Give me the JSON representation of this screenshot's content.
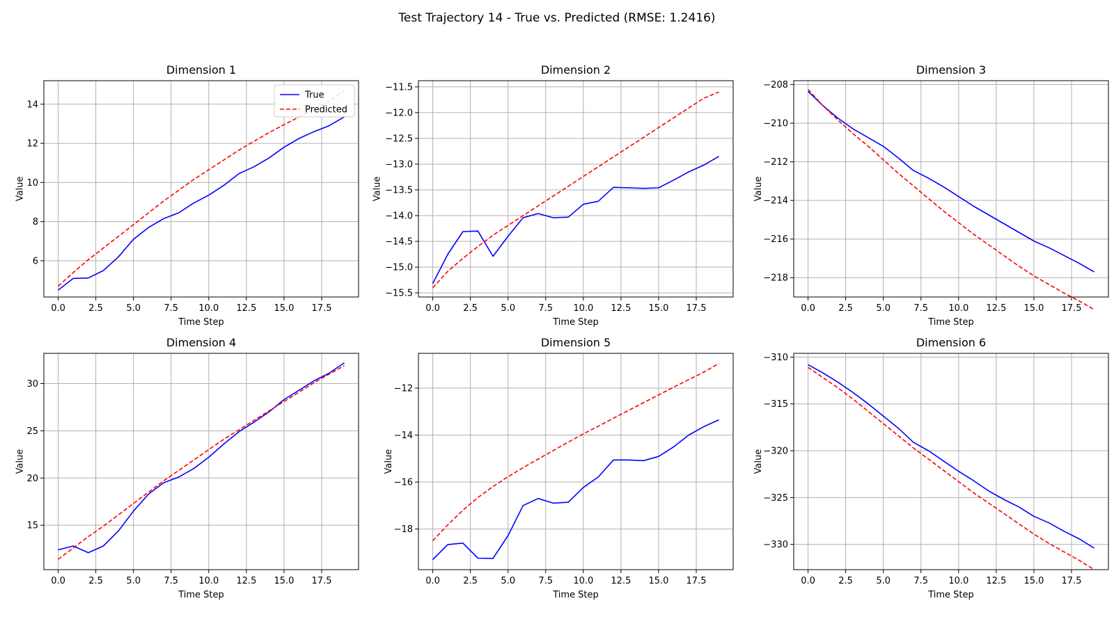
{
  "figure": {
    "title": "Test Trajectory 14 - True vs. Predicted (RMSE: 1.2416)"
  },
  "legend": {
    "true_label": "True",
    "predicted_label": "Predicted",
    "placement": "top-right (Dimension 1 only)"
  },
  "colors": {
    "true": "#0000ff",
    "predicted": "#ff0000",
    "grid": "#b0b0b0"
  },
  "chart_data": [
    {
      "type": "line",
      "title": "Dimension 1",
      "xlabel": "Time Step",
      "ylabel": "Value",
      "grid": true,
      "x": [
        0,
        1,
        2,
        3,
        4,
        5,
        6,
        7,
        8,
        9,
        10,
        11,
        12,
        13,
        14,
        15,
        16,
        17,
        18,
        19
      ],
      "xlim": [
        -0.95,
        19.95
      ],
      "ylim": [
        4.15,
        15.2
      ],
      "xticks": [
        0.0,
        2.5,
        5.0,
        7.5,
        10.0,
        12.5,
        15.0,
        17.5
      ],
      "xtick_labels": [
        "0.0",
        "2.5",
        "5.0",
        "7.5",
        "10.0",
        "12.5",
        "15.0",
        "17.5"
      ],
      "yticks": [
        6,
        8,
        10,
        12,
        14
      ],
      "ytick_labels": [
        "6",
        "8",
        "10",
        "12",
        "14"
      ],
      "series": [
        {
          "name": "True",
          "style": "solid",
          "values": [
            4.5,
            5.1,
            5.12,
            5.5,
            6.2,
            7.1,
            7.7,
            8.15,
            8.45,
            8.95,
            9.35,
            9.85,
            10.45,
            10.8,
            11.25,
            11.8,
            12.25,
            12.6,
            12.9,
            13.35
          ]
        },
        {
          "name": "Predicted",
          "style": "dashed",
          "values": [
            4.7,
            5.4,
            6.05,
            6.65,
            7.25,
            7.85,
            8.45,
            9.05,
            9.6,
            10.15,
            10.65,
            11.15,
            11.65,
            12.1,
            12.55,
            12.95,
            13.35,
            13.75,
            14.15,
            14.7
          ]
        }
      ]
    },
    {
      "type": "line",
      "title": "Dimension 2",
      "xlabel": "Time Step",
      "ylabel": "Value",
      "grid": true,
      "x": [
        0,
        1,
        2,
        3,
        4,
        5,
        6,
        7,
        8,
        9,
        10,
        11,
        12,
        13,
        14,
        15,
        16,
        17,
        18,
        19
      ],
      "xlim": [
        -0.95,
        19.95
      ],
      "ylim": [
        -15.58,
        -11.38
      ],
      "xticks": [
        0.0,
        2.5,
        5.0,
        7.5,
        10.0,
        12.5,
        15.0,
        17.5
      ],
      "xtick_labels": [
        "0.0",
        "2.5",
        "5.0",
        "7.5",
        "10.0",
        "12.5",
        "15.0",
        "17.5"
      ],
      "yticks": [
        -15.5,
        -15.0,
        -14.5,
        -14.0,
        -13.5,
        -13.0,
        -12.5,
        -12.0,
        -11.5
      ],
      "ytick_labels": [
        "−15.5",
        "−15.0",
        "−14.5",
        "−14.0",
        "−13.5",
        "−13.0",
        "−12.5",
        "−12.0",
        "−11.5"
      ],
      "series": [
        {
          "name": "True",
          "style": "solid",
          "values": [
            -15.32,
            -14.75,
            -14.31,
            -14.3,
            -14.79,
            -14.4,
            -14.04,
            -13.96,
            -14.04,
            -14.03,
            -13.78,
            -13.72,
            -13.45,
            -13.46,
            -13.47,
            -13.46,
            -13.31,
            -13.15,
            -13.02,
            -12.85
          ]
        },
        {
          "name": "Predicted",
          "style": "dashed",
          "values": [
            -15.4,
            -15.08,
            -14.83,
            -14.6,
            -14.38,
            -14.19,
            -14.0,
            -13.81,
            -13.62,
            -13.43,
            -13.24,
            -13.05,
            -12.86,
            -12.67,
            -12.48,
            -12.29,
            -12.1,
            -11.91,
            -11.72,
            -11.6
          ]
        }
      ]
    },
    {
      "type": "line",
      "title": "Dimension 3",
      "xlabel": "Time Step",
      "ylabel": "Value",
      "grid": true,
      "x": [
        0,
        1,
        2,
        3,
        4,
        5,
        6,
        7,
        8,
        9,
        10,
        11,
        12,
        13,
        14,
        15,
        16,
        17,
        18,
        19
      ],
      "xlim": [
        -0.95,
        19.95
      ],
      "ylim": [
        -219.0,
        -207.8
      ],
      "xticks": [
        0.0,
        2.5,
        5.0,
        7.5,
        10.0,
        12.5,
        15.0,
        17.5
      ],
      "xtick_labels": [
        "0.0",
        "2.5",
        "5.0",
        "7.5",
        "10.0",
        "12.5",
        "15.0",
        "17.5"
      ],
      "yticks": [
        -218,
        -216,
        -214,
        -212,
        -210,
        -208
      ],
      "ytick_labels": [
        "−218",
        "−216",
        "−214",
        "−212",
        "−210",
        "−208"
      ],
      "series": [
        {
          "name": "True",
          "style": "solid",
          "values": [
            -208.35,
            -209.1,
            -209.75,
            -210.3,
            -210.75,
            -211.2,
            -211.8,
            -212.45,
            -212.85,
            -213.3,
            -213.8,
            -214.3,
            -214.75,
            -215.2,
            -215.65,
            -216.1,
            -216.45,
            -216.85,
            -217.25,
            -217.7
          ]
        },
        {
          "name": "Predicted",
          "style": "dashed",
          "values": [
            -208.25,
            -209.1,
            -209.85,
            -210.55,
            -211.2,
            -211.9,
            -212.6,
            -213.25,
            -213.9,
            -214.55,
            -215.15,
            -215.75,
            -216.3,
            -216.85,
            -217.4,
            -217.9,
            -218.35,
            -218.8,
            -219.2,
            -219.65
          ]
        }
      ]
    },
    {
      "type": "line",
      "title": "Dimension 4",
      "xlabel": "Time Step",
      "ylabel": "Value",
      "grid": true,
      "x": [
        0,
        1,
        2,
        3,
        4,
        5,
        6,
        7,
        8,
        9,
        10,
        11,
        12,
        13,
        14,
        15,
        16,
        17,
        18,
        19
      ],
      "xlim": [
        -0.95,
        19.95
      ],
      "ylim": [
        10.3,
        33.2
      ],
      "xticks": [
        0.0,
        2.5,
        5.0,
        7.5,
        10.0,
        12.5,
        15.0,
        17.5
      ],
      "xtick_labels": [
        "0.0",
        "2.5",
        "5.0",
        "7.5",
        "10.0",
        "12.5",
        "15.0",
        "17.5"
      ],
      "yticks": [
        15,
        20,
        25,
        30
      ],
      "ytick_labels": [
        "15",
        "20",
        "25",
        "30"
      ],
      "series": [
        {
          "name": "True",
          "style": "solid",
          "values": [
            12.4,
            12.8,
            12.1,
            12.8,
            14.4,
            16.5,
            18.3,
            19.5,
            20.1,
            21.0,
            22.2,
            23.6,
            24.9,
            25.9,
            27.0,
            28.3,
            29.3,
            30.3,
            31.1,
            32.2
          ]
        },
        {
          "name": "Predicted",
          "style": "dashed",
          "values": [
            11.4,
            12.6,
            13.8,
            14.9,
            16.1,
            17.3,
            18.5,
            19.7,
            20.8,
            21.9,
            23.0,
            24.1,
            25.1,
            26.1,
            27.1,
            28.1,
            29.1,
            30.1,
            31.0,
            31.9
          ]
        }
      ]
    },
    {
      "type": "line",
      "title": "Dimension 5",
      "xlabel": "Time Step",
      "ylabel": "Value",
      "grid": true,
      "x": [
        0,
        1,
        2,
        3,
        4,
        5,
        6,
        7,
        8,
        9,
        10,
        11,
        12,
        13,
        14,
        15,
        16,
        17,
        18,
        19
      ],
      "xlim": [
        -0.95,
        19.95
      ],
      "ylim": [
        -19.73,
        -10.52
      ],
      "xticks": [
        0.0,
        2.5,
        5.0,
        7.5,
        10.0,
        12.5,
        15.0,
        17.5
      ],
      "xtick_labels": [
        "0.0",
        "2.5",
        "5.0",
        "7.5",
        "10.0",
        "12.5",
        "15.0",
        "17.5"
      ],
      "yticks": [
        -18,
        -16,
        -14,
        -12
      ],
      "ytick_labels": [
        "−18",
        "−16",
        "−14",
        "−12"
      ],
      "series": [
        {
          "name": "True",
          "style": "solid",
          "values": [
            -19.3,
            -18.66,
            -18.6,
            -19.24,
            -19.25,
            -18.28,
            -17.0,
            -16.7,
            -16.9,
            -16.86,
            -16.23,
            -15.78,
            -15.06,
            -15.06,
            -15.09,
            -14.91,
            -14.5,
            -14.0,
            -13.64,
            -13.35
          ]
        },
        {
          "name": "Predicted",
          "style": "dashed",
          "values": [
            -18.5,
            -17.82,
            -17.2,
            -16.66,
            -16.19,
            -15.77,
            -15.39,
            -15.02,
            -14.66,
            -14.3,
            -13.95,
            -13.62,
            -13.28,
            -12.95,
            -12.62,
            -12.29,
            -11.96,
            -11.64,
            -11.32,
            -10.95
          ]
        }
      ]
    },
    {
      "type": "line",
      "title": "Dimension 6",
      "xlabel": "Time Step",
      "ylabel": "Value",
      "grid": true,
      "x": [
        0,
        1,
        2,
        3,
        4,
        5,
        6,
        7,
        8,
        9,
        10,
        11,
        12,
        13,
        14,
        15,
        16,
        17,
        18,
        19
      ],
      "xlim": [
        -0.95,
        19.95
      ],
      "ylim": [
        -332.7,
        -309.6
      ],
      "xticks": [
        0.0,
        2.5,
        5.0,
        7.5,
        10.0,
        12.5,
        15.0,
        17.5
      ],
      "xtick_labels": [
        "0.0",
        "2.5",
        "5.0",
        "7.5",
        "10.0",
        "12.5",
        "15.0",
        "17.5"
      ],
      "yticks": [
        -330,
        -325,
        -320,
        -315,
        -310
      ],
      "ytick_labels": [
        "−330",
        "−325",
        "−320",
        "−315",
        "−310"
      ],
      "series": [
        {
          "name": "True",
          "style": "solid",
          "values": [
            -310.8,
            -311.7,
            -312.7,
            -313.8,
            -315.0,
            -316.3,
            -317.6,
            -319.1,
            -320.0,
            -321.1,
            -322.2,
            -323.2,
            -324.3,
            -325.2,
            -326.0,
            -327.0,
            -327.7,
            -328.6,
            -329.4,
            -330.4
          ]
        },
        {
          "name": "Predicted",
          "style": "dashed",
          "values": [
            -311.1,
            -312.2,
            -313.3,
            -314.5,
            -315.8,
            -317.1,
            -318.4,
            -319.7,
            -320.9,
            -322.1,
            -323.3,
            -324.5,
            -325.6,
            -326.7,
            -327.8,
            -328.9,
            -329.9,
            -330.8,
            -331.7,
            -332.7
          ]
        }
      ]
    }
  ]
}
